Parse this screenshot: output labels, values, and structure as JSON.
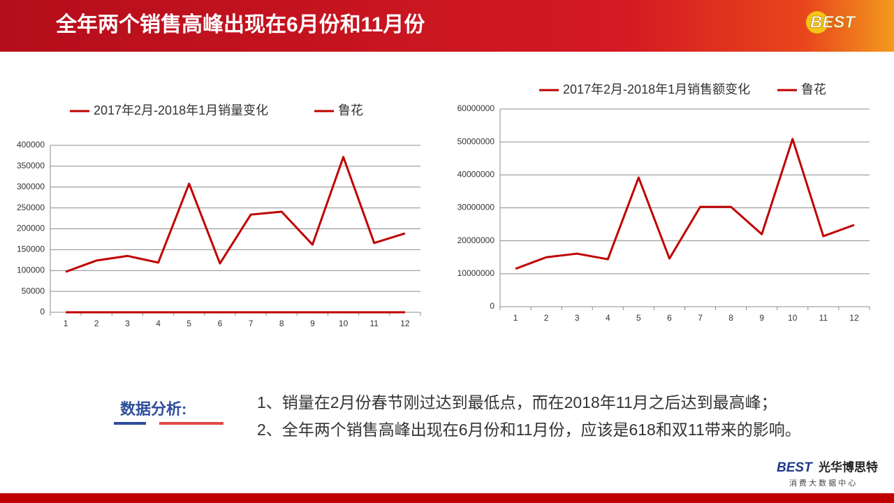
{
  "slide": {
    "title": "全年两个销售高峰出现在6月份和11月份",
    "logo": "BEST",
    "analysis_label": "数据分析:",
    "analysis_lines": [
      "1、销量在2月份春节刚过达到最低点，而在2018年11月之后达到最高峰；",
      "2、全年两个销售高峰出现在6月份和11月份，应该是618和双11带来的影响。"
    ],
    "footer_brand": "光华博思特",
    "footer_logo": "BEST",
    "footer_sub": "消 费 大 数 据 中 心"
  },
  "chart_data": [
    {
      "type": "line",
      "categories": [
        "1",
        "2",
        "3",
        "4",
        "5",
        "6",
        "7",
        "8",
        "9",
        "10",
        "11",
        "12"
      ],
      "series": [
        {
          "name": "2017年2月-2018年1月销量变化",
          "color": "#c00000",
          "values": [
            97000,
            124000,
            135000,
            119000,
            308000,
            117000,
            234000,
            241000,
            162000,
            372000,
            166000,
            189000
          ]
        },
        {
          "name": "鲁花",
          "color": "#c00000",
          "values": [
            0,
            0,
            0,
            0,
            0,
            0,
            0,
            0,
            0,
            0,
            0,
            0
          ]
        }
      ],
      "ylim": [
        0,
        400000
      ],
      "yticks": [
        0,
        50000,
        100000,
        150000,
        200000,
        250000,
        300000,
        350000,
        400000
      ],
      "grid": true
    },
    {
      "type": "line",
      "categories": [
        "1",
        "2",
        "3",
        "4",
        "5",
        "6",
        "7",
        "8",
        "9",
        "10",
        "11",
        "12"
      ],
      "series": [
        {
          "name": "2017年2月-2018年1月销售额变化",
          "color": "#c00000",
          "values": [
            11500000,
            15000000,
            16100000,
            14400000,
            39200000,
            14600000,
            30300000,
            30300000,
            22000000,
            50900000,
            21400000,
            24800000
          ]
        },
        {
          "name": "鲁花",
          "color": "#c00000",
          "values": [
            null,
            null,
            null,
            null,
            null,
            null,
            null,
            null,
            null,
            null,
            null,
            null
          ]
        }
      ],
      "ylim": [
        0,
        60000000
      ],
      "yticks": [
        0,
        10000000,
        20000000,
        30000000,
        40000000,
        50000000,
        60000000
      ],
      "grid": true
    }
  ]
}
